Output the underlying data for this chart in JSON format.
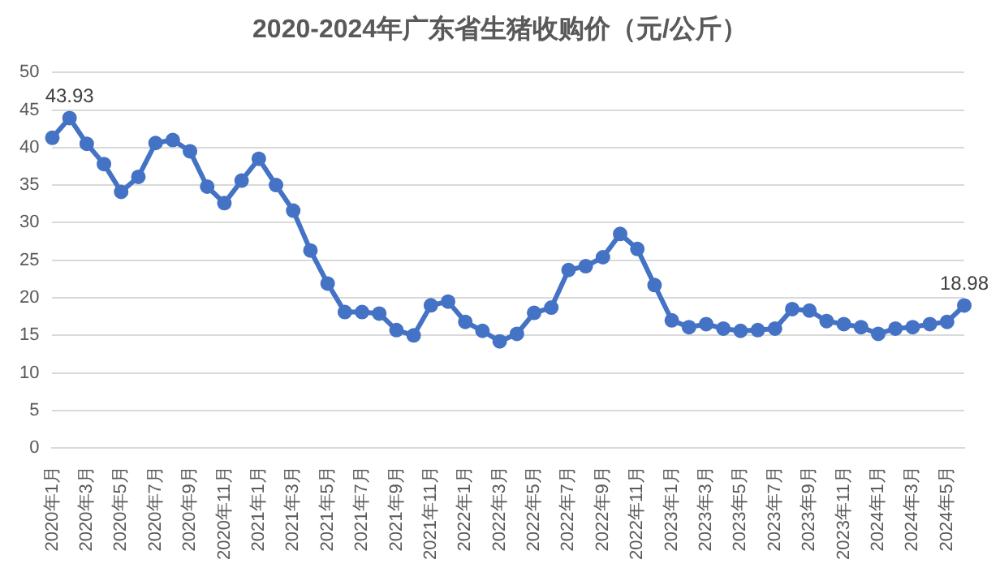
{
  "chart_data": {
    "type": "line",
    "title": "2020-2024年广东省生猪收购价（元/公斤）",
    "categories": [
      "2020年1月",
      null,
      "2020年3月",
      null,
      "2020年5月",
      null,
      "2020年7月",
      null,
      "2020年9月",
      null,
      "2020年11月",
      null,
      "2021年1月",
      null,
      "2021年3月",
      null,
      "2021年5月",
      null,
      "2021年7月",
      null,
      "2021年9月",
      null,
      "2021年11月",
      null,
      "2022年1月",
      null,
      "2022年3月",
      null,
      "2022年5月",
      null,
      "2022年7月",
      null,
      "2022年9月",
      null,
      "2022年11月",
      null,
      "2023年1月",
      null,
      "2023年3月",
      null,
      "2023年5月",
      null,
      "2023年7月",
      null,
      "2023年9月",
      null,
      "2023年11月",
      null,
      "2024年1月",
      null,
      "2024年3月",
      null,
      "2024年5月",
      null
    ],
    "series": [
      {
        "color": "#4472c4",
        "values": [
          41.3,
          43.93,
          40.5,
          37.8,
          34.1,
          36.1,
          40.6,
          41.0,
          39.5,
          34.8,
          32.6,
          35.6,
          38.5,
          35.0,
          31.6,
          26.3,
          21.9,
          18.1,
          18.1,
          17.9,
          15.7,
          15.0,
          19.0,
          19.5,
          16.8,
          15.6,
          14.2,
          15.2,
          18.0,
          18.7,
          23.7,
          24.2,
          25.4,
          28.5,
          26.5,
          21.7,
          17.0,
          16.1,
          16.5,
          15.9,
          15.6,
          15.7,
          15.9,
          18.5,
          18.3,
          16.9,
          16.5,
          16.1,
          15.2,
          15.9,
          16.1,
          16.5,
          16.8,
          18.98
        ],
        "value_labels": [
          null,
          "43.93",
          null,
          null,
          null,
          null,
          null,
          null,
          null,
          null,
          null,
          null,
          null,
          null,
          null,
          null,
          null,
          null,
          null,
          null,
          null,
          null,
          null,
          null,
          null,
          null,
          null,
          null,
          null,
          null,
          null,
          null,
          null,
          null,
          null,
          null,
          null,
          null,
          null,
          null,
          null,
          null,
          null,
          null,
          null,
          null,
          null,
          null,
          null,
          null,
          null,
          null,
          null,
          "18.98"
        ]
      }
    ],
    "ylim": [
      0,
      50
    ],
    "yticks": [
      0,
      5,
      10,
      15,
      20,
      25,
      30,
      35,
      40,
      45,
      50
    ],
    "grid": "y",
    "legend": false,
    "marker": "circle",
    "line_style": "solid"
  }
}
